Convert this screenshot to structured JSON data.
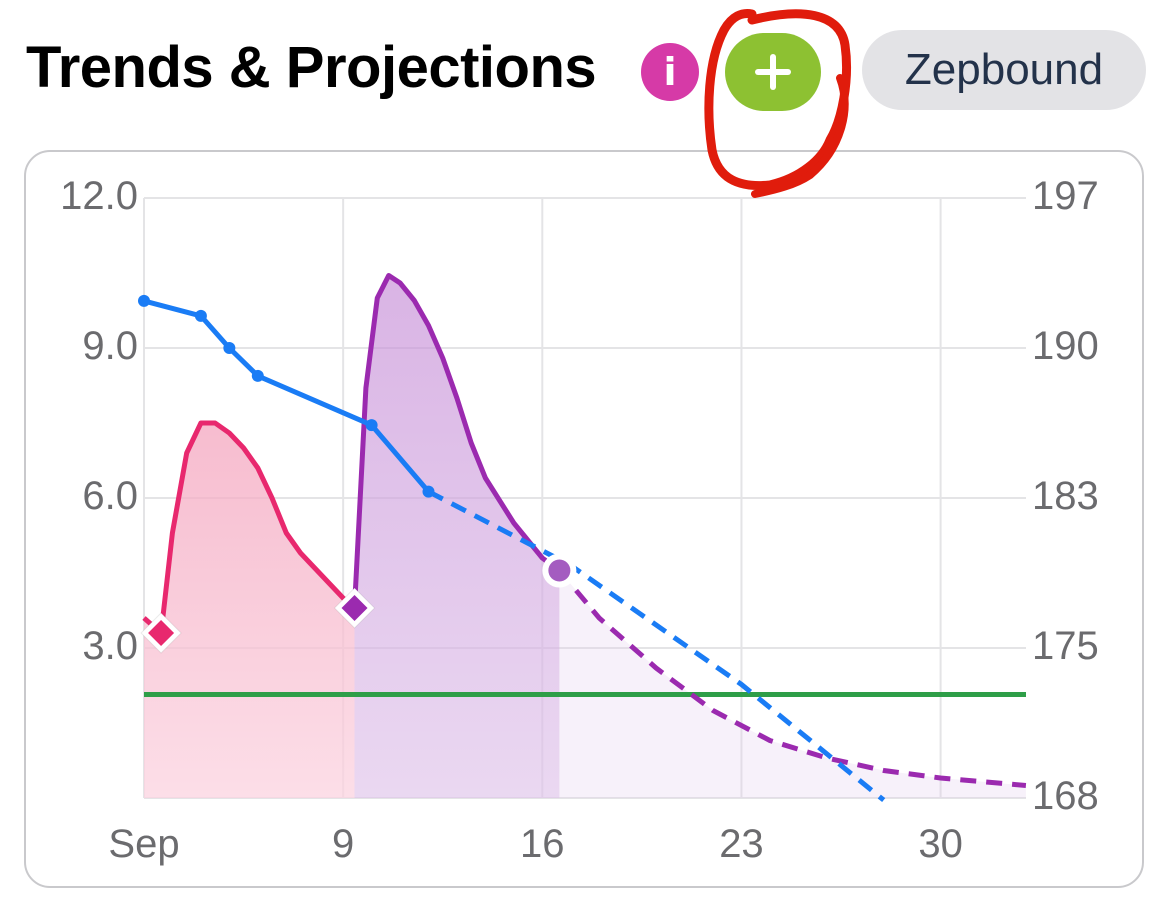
{
  "header": {
    "title": "Trends & Projections",
    "info_icon": "info-icon",
    "info_glyph": "i",
    "add_icon": "plus-icon",
    "medication": "Zepbound"
  },
  "colors": {
    "blue": "#1a7cf5",
    "pink": "#e8286e",
    "purple": "#9b2aaf",
    "green": "#2e9e48",
    "info": "#d63aa7",
    "add": "#8dc132",
    "annotation": "#e01c0c"
  },
  "chart_data": {
    "type": "line",
    "x_ticks": [
      "Sep",
      "9",
      "16",
      "23",
      "30"
    ],
    "y_left_ticks": [
      "12.0",
      "9.0",
      "6.0",
      "3.0"
    ],
    "y_right_ticks": [
      "197",
      "190",
      "183",
      "175",
      "168"
    ],
    "y_left_range": [
      0,
      12
    ],
    "y_right_range": [
      168,
      197
    ],
    "x_range_days": [
      2,
      33
    ],
    "grid": true,
    "goal_level_left": 2.07,
    "series": [
      {
        "kind": "weight",
        "axis": "right",
        "color": "#1a7cf5",
        "points": [
          [
            2,
            192.2
          ],
          [
            4,
            191.5
          ],
          [
            5,
            190
          ],
          [
            6,
            188.7
          ],
          [
            10,
            186.4
          ],
          [
            12,
            183.3
          ]
        ]
      },
      {
        "kind": "weight-projection",
        "axis": "right",
        "dashed": true,
        "color": "#1a7cf5",
        "points": [
          [
            12,
            183.3
          ],
          [
            17,
            179.4
          ],
          [
            23,
            173.3
          ],
          [
            28,
            167.9
          ]
        ]
      },
      {
        "kind": "dose-level",
        "axis": "left",
        "color": "#e8286e",
        "dose_day": 2.6,
        "points": [
          [
            2,
            3.6
          ],
          [
            2.6,
            3.3
          ],
          [
            3,
            5.3
          ],
          [
            3.5,
            6.9
          ],
          [
            4,
            7.5
          ],
          [
            4.5,
            7.5
          ],
          [
            5,
            7.3
          ],
          [
            5.5,
            7.0
          ],
          [
            6,
            6.6
          ],
          [
            6.5,
            6.0
          ],
          [
            7,
            5.3
          ],
          [
            7.5,
            4.9
          ],
          [
            8,
            4.6
          ],
          [
            8.5,
            4.3
          ],
          [
            9,
            4.0
          ],
          [
            9.4,
            3.8
          ]
        ]
      },
      {
        "kind": "dose-level",
        "axis": "left",
        "color": "#9b2aaf",
        "dose_day": 9.4,
        "points": [
          [
            9.4,
            3.8
          ],
          [
            9.8,
            8.2
          ],
          [
            10.2,
            10.0
          ],
          [
            10.6,
            10.45
          ],
          [
            11,
            10.3
          ],
          [
            11.5,
            9.95
          ],
          [
            12,
            9.45
          ],
          [
            12.5,
            8.8
          ],
          [
            13,
            8.0
          ],
          [
            13.5,
            7.1
          ],
          [
            14,
            6.4
          ],
          [
            15,
            5.5
          ],
          [
            16,
            4.8
          ],
          [
            16.6,
            4.55
          ]
        ]
      },
      {
        "kind": "dose-level-projection",
        "axis": "left",
        "dashed": true,
        "color": "#9b2aaf",
        "current_day": 16.6,
        "points": [
          [
            16.6,
            4.55
          ],
          [
            18,
            3.6
          ],
          [
            20,
            2.6
          ],
          [
            22,
            1.75
          ],
          [
            24,
            1.15
          ],
          [
            26,
            0.8
          ],
          [
            28,
            0.55
          ],
          [
            30,
            0.4
          ],
          [
            33,
            0.25
          ]
        ]
      }
    ]
  }
}
